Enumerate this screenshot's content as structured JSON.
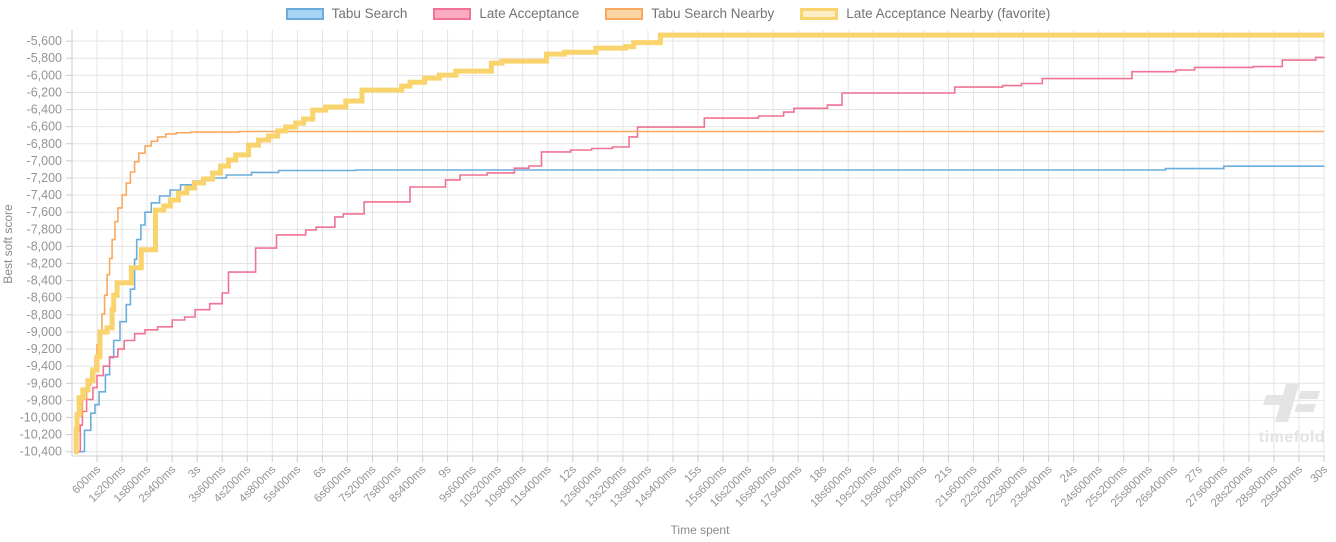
{
  "watermark": {
    "text": "timefold"
  },
  "legend": {
    "position": "top"
  },
  "chart_data": {
    "type": "line",
    "title": "",
    "xlabel": "Time spent",
    "ylabel": "Best soft score",
    "step_mode": "after",
    "grid": true,
    "legend_position": "top",
    "x_unit": "time",
    "xlim_ms": [
      0,
      30000
    ],
    "x_tick_interval_ms": 600,
    "x_ticks": [
      "600ms",
      "1s200ms",
      "1s800ms",
      "2s400ms",
      "3s",
      "3s600ms",
      "4s200ms",
      "4s800ms",
      "5s400ms",
      "6s",
      "6s600ms",
      "7s200ms",
      "7s800ms",
      "8s400ms",
      "9s",
      "9s600ms",
      "10s200ms",
      "10s800ms",
      "11s400ms",
      "12s",
      "12s600ms",
      "13s200ms",
      "13s800ms",
      "14s400ms",
      "15s",
      "15s600ms",
      "16s200ms",
      "16s800ms",
      "17s400ms",
      "18s",
      "18s600ms",
      "19s200ms",
      "19s800ms",
      "20s400ms",
      "21s",
      "21s600ms",
      "22s200ms",
      "22s800ms",
      "23s400ms",
      "24s",
      "24s600ms",
      "25s200ms",
      "25s800ms",
      "26s400ms",
      "27s",
      "27s600ms",
      "28s200ms",
      "28s800ms",
      "29s400ms",
      "30s"
    ],
    "ylim": [
      -10450,
      -5470
    ],
    "y_ticks": [
      -5600,
      -5800,
      -6000,
      -6200,
      -6400,
      -6600,
      -6800,
      -7000,
      -7200,
      -7400,
      -7600,
      -7800,
      -8000,
      -8200,
      -8400,
      -8600,
      -8800,
      -9000,
      -9200,
      -9400,
      -9600,
      -9800,
      -10000,
      -10200,
      -10400
    ],
    "colors": {
      "grid": "#e4e4e4",
      "axis": "#cccccc",
      "tick_text": "#949494",
      "background": "#ffffff"
    },
    "series": [
      {
        "name": "Tabu Search",
        "color": "#6aaddc",
        "legend_fill": "#a9d4f5",
        "line_width": 1.6,
        "points": [
          [
            0.2,
            -10400
          ],
          [
            0.3,
            -10150
          ],
          [
            0.45,
            -9950
          ],
          [
            0.55,
            -9850
          ],
          [
            0.65,
            -9700
          ],
          [
            0.8,
            -9500
          ],
          [
            0.9,
            -9300
          ],
          [
            1.0,
            -9100
          ],
          [
            1.15,
            -8880
          ],
          [
            1.3,
            -8680
          ],
          [
            1.4,
            -8500
          ],
          [
            1.5,
            -8150
          ],
          [
            1.55,
            -7920
          ],
          [
            1.65,
            -7750
          ],
          [
            1.75,
            -7600
          ],
          [
            1.9,
            -7490
          ],
          [
            2.1,
            -7410
          ],
          [
            2.35,
            -7340
          ],
          [
            2.6,
            -7280
          ],
          [
            2.9,
            -7235
          ],
          [
            3.2,
            -7200
          ],
          [
            3.7,
            -7165
          ],
          [
            4.3,
            -7135
          ],
          [
            4.95,
            -7113
          ],
          [
            6.8,
            -7107
          ],
          [
            26.2,
            -7090
          ],
          [
            27.6,
            -7062
          ],
          [
            30,
            -7060
          ]
        ]
      },
      {
        "name": "Late Acceptance",
        "color": "#f07294",
        "legend_fill": "#f8abc1",
        "line_width": 1.6,
        "points": [
          [
            0.1,
            -10400
          ],
          [
            0.2,
            -10090
          ],
          [
            0.25,
            -9930
          ],
          [
            0.35,
            -9790
          ],
          [
            0.5,
            -9650
          ],
          [
            0.6,
            -9510
          ],
          [
            0.75,
            -9400
          ],
          [
            0.9,
            -9290
          ],
          [
            1.1,
            -9200
          ],
          [
            1.25,
            -9100
          ],
          [
            1.5,
            -9020
          ],
          [
            1.75,
            -8975
          ],
          [
            2.05,
            -8940
          ],
          [
            2.4,
            -8860
          ],
          [
            2.7,
            -8825
          ],
          [
            2.95,
            -8740
          ],
          [
            3.3,
            -8670
          ],
          [
            3.6,
            -8545
          ],
          [
            3.75,
            -8300
          ],
          [
            4.4,
            -8020
          ],
          [
            4.9,
            -7865
          ],
          [
            5.6,
            -7808
          ],
          [
            5.85,
            -7775
          ],
          [
            6.3,
            -7655
          ],
          [
            6.5,
            -7620
          ],
          [
            7.0,
            -7480
          ],
          [
            8.1,
            -7305
          ],
          [
            8.95,
            -7222
          ],
          [
            9.3,
            -7165
          ],
          [
            9.95,
            -7140
          ],
          [
            10.6,
            -7085
          ],
          [
            10.95,
            -7060
          ],
          [
            11.25,
            -6895
          ],
          [
            11.95,
            -6873
          ],
          [
            12.45,
            -6855
          ],
          [
            12.95,
            -6838
          ],
          [
            13.35,
            -6720
          ],
          [
            13.55,
            -6605
          ],
          [
            15.15,
            -6500
          ],
          [
            16.45,
            -6475
          ],
          [
            17.05,
            -6430
          ],
          [
            17.3,
            -6385
          ],
          [
            18.1,
            -6348
          ],
          [
            18.45,
            -6207
          ],
          [
            21.15,
            -6137
          ],
          [
            22.3,
            -6120
          ],
          [
            22.75,
            -6095
          ],
          [
            23.25,
            -6038
          ],
          [
            25.4,
            -5958
          ],
          [
            26.45,
            -5938
          ],
          [
            26.9,
            -5907
          ],
          [
            28.3,
            -5898
          ],
          [
            29.0,
            -5822
          ],
          [
            29.8,
            -5790
          ],
          [
            30,
            -5787
          ]
        ]
      },
      {
        "name": "Tabu Search Nearby",
        "color": "#f9a95f",
        "legend_fill": "#fcd5a5",
        "line_width": 1.6,
        "points": [
          [
            0.05,
            -10400
          ],
          [
            0.1,
            -10140
          ],
          [
            0.15,
            -9970
          ],
          [
            0.25,
            -9790
          ],
          [
            0.35,
            -9620
          ],
          [
            0.45,
            -9470
          ],
          [
            0.55,
            -9300
          ],
          [
            0.6,
            -9150
          ],
          [
            0.67,
            -8980
          ],
          [
            0.72,
            -8790
          ],
          [
            0.78,
            -8570
          ],
          [
            0.84,
            -8330
          ],
          [
            0.9,
            -8140
          ],
          [
            0.96,
            -7920
          ],
          [
            1.03,
            -7710
          ],
          [
            1.1,
            -7550
          ],
          [
            1.2,
            -7400
          ],
          [
            1.3,
            -7260
          ],
          [
            1.4,
            -7130
          ],
          [
            1.5,
            -7010
          ],
          [
            1.6,
            -6910
          ],
          [
            1.75,
            -6825
          ],
          [
            1.9,
            -6770
          ],
          [
            2.05,
            -6720
          ],
          [
            2.25,
            -6685
          ],
          [
            2.5,
            -6670
          ],
          [
            2.85,
            -6663
          ],
          [
            4.0,
            -6657
          ],
          [
            30,
            -6657
          ]
        ]
      },
      {
        "name": "Late Acceptance Nearby (favorite)",
        "color": "#f9d36c",
        "legend_fill": "#fdeec6",
        "line_width": 5,
        "points": [
          [
            0.05,
            -10400
          ],
          [
            0.1,
            -10140
          ],
          [
            0.12,
            -9970
          ],
          [
            0.17,
            -9770
          ],
          [
            0.26,
            -9677
          ],
          [
            0.38,
            -9570
          ],
          [
            0.5,
            -9443
          ],
          [
            0.6,
            -9290
          ],
          [
            0.67,
            -9000
          ],
          [
            0.84,
            -8950
          ],
          [
            0.96,
            -8740
          ],
          [
            1.0,
            -8570
          ],
          [
            1.08,
            -8425
          ],
          [
            1.42,
            -8250
          ],
          [
            1.66,
            -8040
          ],
          [
            2.0,
            -7575
          ],
          [
            2.2,
            -7527
          ],
          [
            2.36,
            -7457
          ],
          [
            2.55,
            -7375
          ],
          [
            2.75,
            -7317
          ],
          [
            2.93,
            -7258
          ],
          [
            3.15,
            -7212
          ],
          [
            3.37,
            -7142
          ],
          [
            3.56,
            -7060
          ],
          [
            3.75,
            -6990
          ],
          [
            3.92,
            -6930
          ],
          [
            4.23,
            -6815
          ],
          [
            4.47,
            -6756
          ],
          [
            4.71,
            -6710
          ],
          [
            4.93,
            -6650
          ],
          [
            5.12,
            -6604
          ],
          [
            5.36,
            -6558
          ],
          [
            5.55,
            -6510
          ],
          [
            5.77,
            -6406
          ],
          [
            6.08,
            -6370
          ],
          [
            6.56,
            -6300
          ],
          [
            6.95,
            -6172
          ],
          [
            7.9,
            -6126
          ],
          [
            8.1,
            -6080
          ],
          [
            8.45,
            -6032
          ],
          [
            8.8,
            -5997
          ],
          [
            9.2,
            -5950
          ],
          [
            10.05,
            -5857
          ],
          [
            10.3,
            -5834
          ],
          [
            11.37,
            -5752
          ],
          [
            11.8,
            -5729
          ],
          [
            12.55,
            -5682
          ],
          [
            13.27,
            -5664
          ],
          [
            13.46,
            -5617
          ],
          [
            14.1,
            -5530
          ],
          [
            30,
            -5530
          ]
        ]
      }
    ]
  }
}
